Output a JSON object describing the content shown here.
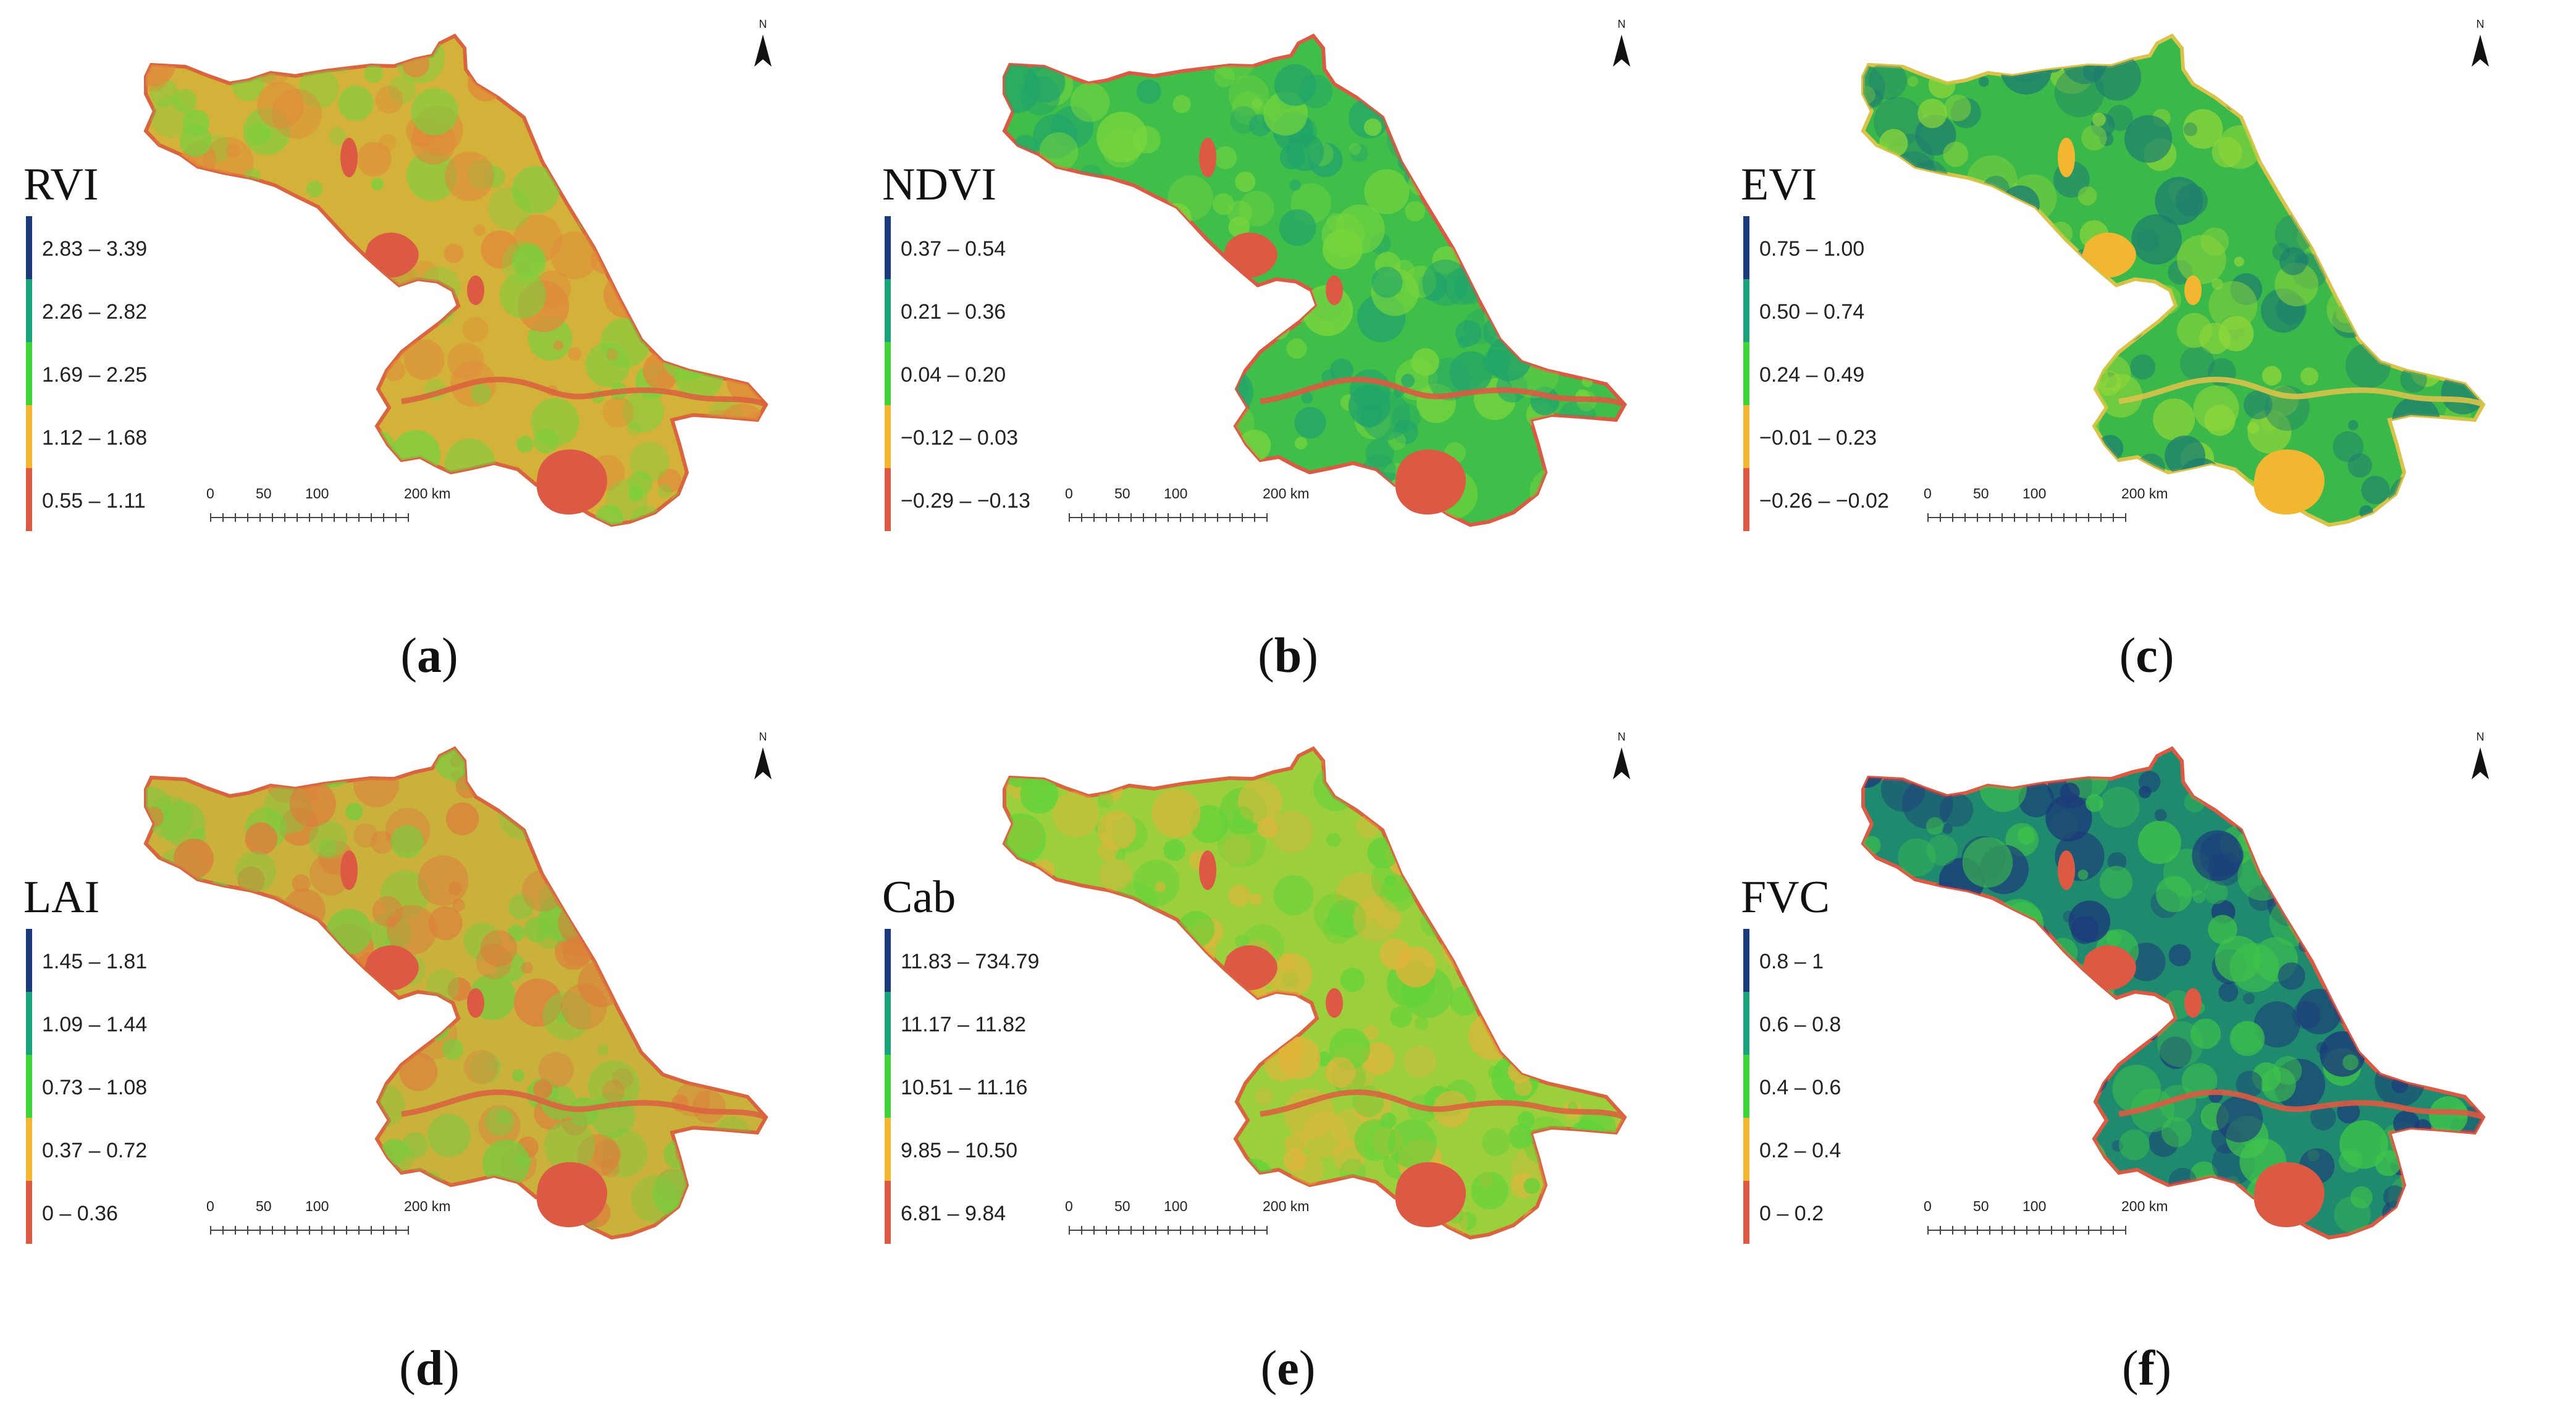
{
  "figure": {
    "panels": [
      {
        "letter": "a",
        "title": "RVI",
        "theme": "rvi",
        "legend": [
          "2.83 – 3.39",
          "2.26 – 2.82",
          "1.69 – 2.25",
          "1.12 – 1.68",
          "0.55 – 1.11"
        ]
      },
      {
        "letter": "b",
        "title": "NDVI",
        "theme": "ndvi",
        "legend": [
          "0.37 – 0.54",
          "0.21 – 0.36",
          "0.04 – 0.20",
          "−0.12 – 0.03",
          "−0.29 – −0.13"
        ]
      },
      {
        "letter": "c",
        "title": "EVI",
        "theme": "evi",
        "legend": [
          "0.75 – 1.00",
          "0.50 – 0.74",
          "0.24 – 0.49",
          "−0.01 – 0.23",
          "−0.26 – −0.02"
        ]
      },
      {
        "letter": "d",
        "title": "LAI",
        "theme": "lai",
        "legend": [
          "1.45 – 1.81",
          "1.09 – 1.44",
          "0.73 – 1.08",
          "0.37 – 0.72",
          "0 – 0.36"
        ]
      },
      {
        "letter": "e",
        "title": "Cab",
        "theme": "cab",
        "legend": [
          "11.83 – 734.79",
          "11.17 – 11.82",
          "10.51 – 11.16",
          "9.85 – 10.50",
          "6.81 – 9.84"
        ]
      },
      {
        "letter": "f",
        "title": "FVC",
        "theme": "fvc",
        "legend": [
          "0.8 – 1",
          "0.6 – 0.8",
          "0.4 – 0.6",
          "0.2 – 0.4",
          "0 – 0.2"
        ]
      }
    ],
    "legend_colors": [
      "#1b3a7a",
      "#1aa37a",
      "#3fd43a",
      "#f2b630",
      "#dc5a43"
    ],
    "scale_labels": [
      "0",
      "50",
      "100",
      "200 km"
    ],
    "north_label": "N",
    "themes": {
      "rvi": {
        "base": "#d4b23a",
        "patch1": "#7ccf3e",
        "patch2": "#e08a3a",
        "water": "#dc5a43",
        "river": "#d9643f"
      },
      "ndvi": {
        "base": "#3fbf4a",
        "patch1": "#22a46a",
        "patch2": "#7ad63c",
        "water": "#dc5a43",
        "river": "#dc5a43"
      },
      "evi": {
        "base": "#3bb84a",
        "patch1": "#1d7f6e",
        "patch2": "#8ed63a",
        "water": "#f2b630",
        "river": "#d9c34a"
      },
      "lai": {
        "base": "#c9b13c",
        "patch1": "#7acb3e",
        "patch2": "#dd7e3c",
        "water": "#dc5a43",
        "river": "#d9643f"
      },
      "cab": {
        "base": "#9bcf3c",
        "patch1": "#5fd33a",
        "patch2": "#e2b43a",
        "water": "#dc5a43",
        "river": "#d9643f"
      },
      "fvc": {
        "base": "#1f8a6e",
        "patch1": "#1b3a7a",
        "patch2": "#3fc44a",
        "water": "#dc5a43",
        "river": "#dc5a43"
      }
    }
  }
}
